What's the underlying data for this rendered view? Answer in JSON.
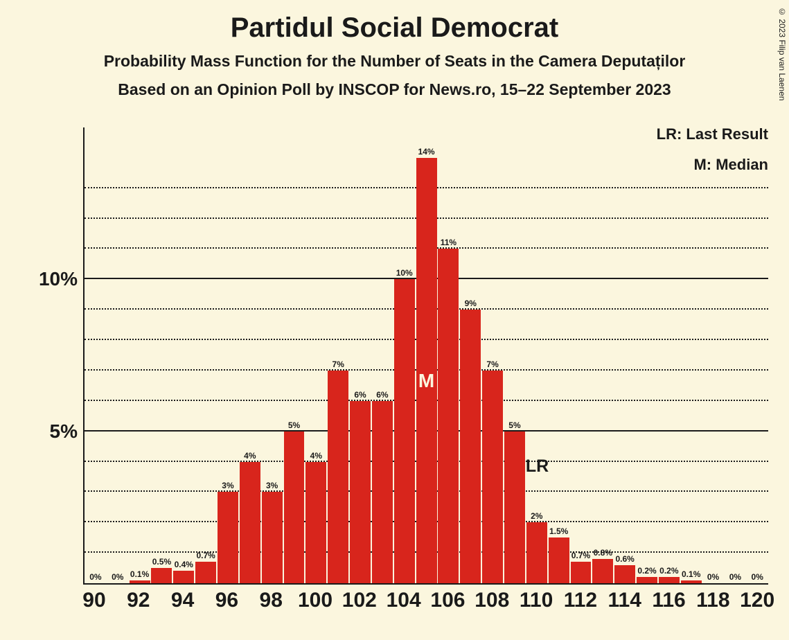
{
  "copyright": "© 2023 Filip van Laenen",
  "title": "Partidul Social Democrat",
  "subtitle1": "Probability Mass Function for the Number of Seats in the Camera Deputaților",
  "subtitle2": "Based on an Opinion Poll by INSCOP for News.ro, 15–22 September 2023",
  "legend": {
    "lr": "LR: Last Result",
    "m": "M: Median"
  },
  "chart": {
    "type": "bar",
    "background_color": "#fbf6de",
    "bar_color": "#d8251c",
    "axis_color": "#1a1a1a",
    "grid_color": "#1a1a1a",
    "text_color": "#1a1a1a",
    "title_fontsize": 40,
    "subtitle_fontsize": 23,
    "ylabel_fontsize": 28,
    "xlabel_fontsize": 30,
    "barlabel_fontsize": 12,
    "bar_width_ratio": 0.94,
    "ylim": [
      0,
      15
    ],
    "y_major": [
      5,
      10
    ],
    "y_labels": {
      "5": "5%",
      "10": "10%"
    },
    "y_minor": [
      1,
      2,
      3,
      4,
      6,
      7,
      8,
      9,
      11,
      12,
      13
    ],
    "x_start": 90,
    "x_end": 120,
    "x_tick_step": 2,
    "bars": [
      {
        "x": 90,
        "value": 0,
        "label": "0%"
      },
      {
        "x": 91,
        "value": 0,
        "label": "0%"
      },
      {
        "x": 92,
        "value": 0.1,
        "label": "0.1%"
      },
      {
        "x": 93,
        "value": 0.5,
        "label": "0.5%"
      },
      {
        "x": 94,
        "value": 0.4,
        "label": "0.4%"
      },
      {
        "x": 95,
        "value": 0.7,
        "label": "0.7%"
      },
      {
        "x": 96,
        "value": 3,
        "label": "3%"
      },
      {
        "x": 97,
        "value": 4,
        "label": "4%"
      },
      {
        "x": 98,
        "value": 3,
        "label": "3%"
      },
      {
        "x": 99,
        "value": 5,
        "label": "5%"
      },
      {
        "x": 100,
        "value": 4,
        "label": "4%"
      },
      {
        "x": 101,
        "value": 7,
        "label": "7%"
      },
      {
        "x": 102,
        "value": 6,
        "label": "6%"
      },
      {
        "x": 103,
        "value": 6,
        "label": "6%"
      },
      {
        "x": 104,
        "value": 10,
        "label": "10%"
      },
      {
        "x": 105,
        "value": 14,
        "label": "14%",
        "median": true
      },
      {
        "x": 106,
        "value": 11,
        "label": "11%"
      },
      {
        "x": 107,
        "value": 9,
        "label": "9%"
      },
      {
        "x": 108,
        "value": 7,
        "label": "7%"
      },
      {
        "x": 109,
        "value": 5,
        "label": "5%"
      },
      {
        "x": 110,
        "value": 2,
        "label": "2%",
        "lr": true
      },
      {
        "x": 111,
        "value": 1.5,
        "label": "1.5%"
      },
      {
        "x": 112,
        "value": 0.7,
        "label": "0.7%"
      },
      {
        "x": 113,
        "value": 0.8,
        "label": "0.8%"
      },
      {
        "x": 114,
        "value": 0.6,
        "label": "0.6%"
      },
      {
        "x": 115,
        "value": 0.2,
        "label": "0.2%"
      },
      {
        "x": 116,
        "value": 0.2,
        "label": "0.2%"
      },
      {
        "x": 117,
        "value": 0.1,
        "label": "0.1%"
      },
      {
        "x": 118,
        "value": 0,
        "label": "0%"
      },
      {
        "x": 119,
        "value": 0,
        "label": "0%"
      },
      {
        "x": 120,
        "value": 0,
        "label": "0%"
      }
    ],
    "median_text": "M",
    "lr_text": "LR"
  }
}
